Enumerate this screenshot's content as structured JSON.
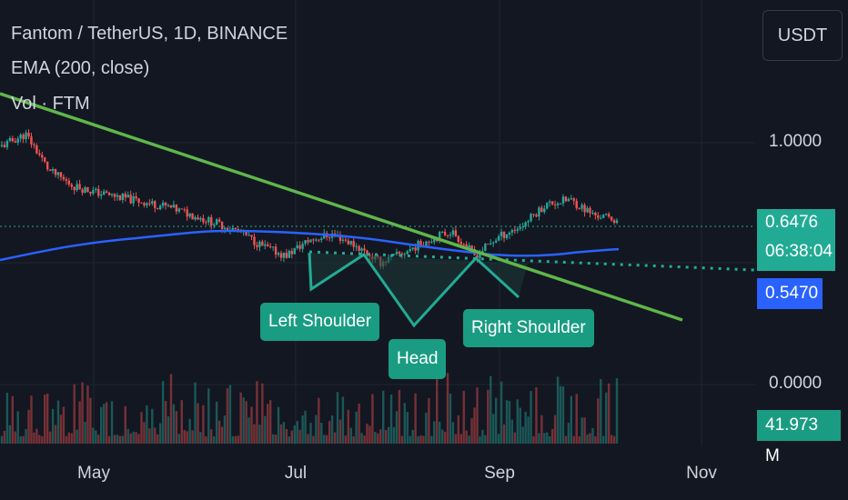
{
  "header": {
    "symbol_line": "Fantom / TetherUS, 1D, BINANCE",
    "ema_line": "EMA (200, close)",
    "vol_line": "Vol · FTM",
    "currency_button": "USDT"
  },
  "colors": {
    "background": "#131722",
    "up_candle": "#26a69a",
    "down_candle": "#ef5350",
    "ema": "#2962ff",
    "trendline": "#5fb64a",
    "neckline": "#22ab94",
    "pattern_fill": "#1e3a36",
    "annotation_bg": "#1a9c82"
  },
  "chart_data": {
    "type": "candlestick",
    "title": "Fantom / TetherUS, 1D, BINANCE",
    "x_axis": {
      "tick_labels": [
        "May",
        "Jul",
        "Sep",
        "Nov"
      ]
    },
    "y_axis": {
      "scale": "log",
      "tick_labels": [
        "1.0000",
        "0.0000"
      ]
    },
    "price_tags": {
      "last_price": "0.6476",
      "countdown": "06:38:04",
      "ema_value": "0.5470",
      "volume": "41.973 M"
    },
    "series": [
      {
        "name": "EMA (200, close)",
        "color": "#2962ff"
      },
      {
        "name": "Vol · FTM"
      }
    ],
    "annotations": [
      {
        "label": "Left Shoulder"
      },
      {
        "label": "Head"
      },
      {
        "label": "Right Shoulder"
      }
    ],
    "approximate_close_series": [
      0.98,
      1.05,
      0.85,
      0.78,
      0.75,
      0.73,
      0.71,
      0.69,
      0.66,
      0.63,
      0.6,
      0.55,
      0.52,
      0.57,
      0.59,
      0.55,
      0.5,
      0.53,
      0.57,
      0.6,
      0.52,
      0.58,
      0.62,
      0.7,
      0.72,
      0.66,
      0.64
    ]
  }
}
